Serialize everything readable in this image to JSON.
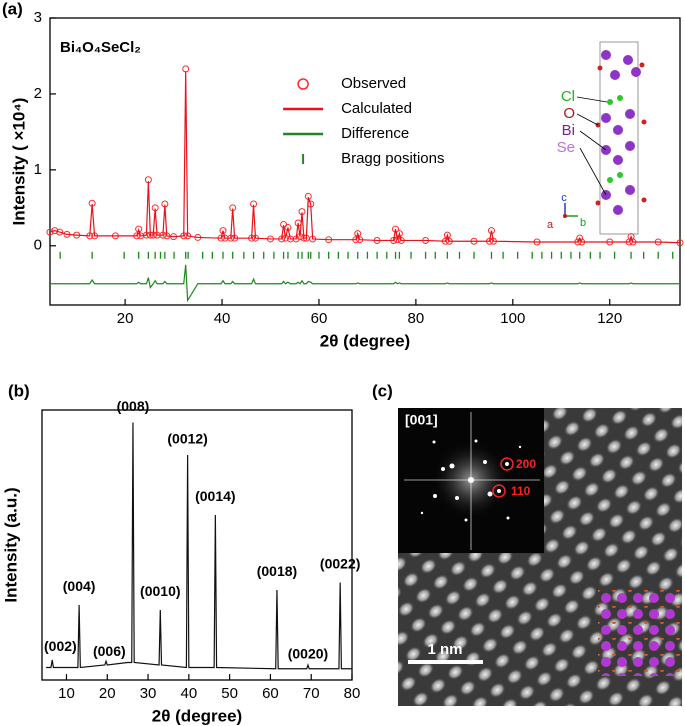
{
  "panel_labels": [
    "(a)",
    "(b)",
    "(c)"
  ],
  "chart_data": [
    {
      "type": "line",
      "title": "Bi₄O₄SeCl₂",
      "xlabel": "2θ (degree)",
      "ylabel": "Intensity ( ×10⁴)",
      "xlim": [
        4.5,
        134.5
      ],
      "ylim": [
        -0.78,
        3
      ],
      "xticks": [
        20,
        40,
        60,
        80,
        100,
        120
      ],
      "yticks": [
        0,
        1,
        2,
        3
      ],
      "legend": "upper center",
      "x": [
        4.5,
        5.5,
        6.5,
        8,
        10,
        12.7,
        13.2,
        13.7,
        18,
        22.4,
        22.8,
        23.2,
        24.4,
        24.8,
        25.2,
        25.8,
        26.2,
        26.6,
        27.8,
        28.2,
        28.6,
        30,
        32.1,
        32.5,
        32.9,
        35,
        39.8,
        40.2,
        40.6,
        41.8,
        42.2,
        42.6,
        46.1,
        46.5,
        46.9,
        50,
        52.3,
        52.7,
        53.1,
        53.6,
        54.1,
        55.3,
        55.7,
        56.1,
        56.5,
        56.9,
        57.4,
        57.8,
        58.3,
        58.7,
        62,
        67.6,
        68,
        68.4,
        72,
        75.4,
        75.8,
        76.2,
        76.6,
        77,
        82,
        86.1,
        86.5,
        86.9,
        92,
        95.2,
        95.6,
        96,
        105,
        113.4,
        113.8,
        114.2,
        120,
        124,
        124.4,
        124.8,
        130,
        134.5
      ],
      "series": [
        {
          "name": "Observed",
          "color": "#ff2a2a",
          "marker": "circle",
          "values": [
            0.18,
            0.2,
            0.18,
            0.15,
            0.14,
            0.13,
            0.56,
            0.13,
            0.13,
            0.13,
            0.22,
            0.13,
            0.14,
            0.87,
            0.14,
            0.14,
            0.5,
            0.14,
            0.14,
            0.55,
            0.13,
            0.12,
            0.13,
            2.33,
            0.13,
            0.11,
            0.1,
            0.2,
            0.1,
            0.1,
            0.5,
            0.1,
            0.1,
            0.55,
            0.1,
            0.09,
            0.09,
            0.28,
            0.1,
            0.24,
            0.09,
            0.09,
            0.3,
            0.12,
            0.45,
            0.1,
            0.1,
            0.65,
            0.55,
            0.09,
            0.08,
            0.08,
            0.16,
            0.08,
            0.07,
            0.07,
            0.22,
            0.08,
            0.16,
            0.07,
            0.07,
            0.06,
            0.14,
            0.06,
            0.06,
            0.06,
            0.2,
            0.06,
            0.05,
            0.05,
            0.1,
            0.05,
            0.05,
            0.05,
            0.12,
            0.05,
            0.05,
            0.04
          ]
        },
        {
          "name": "Calculated",
          "color": "#e8131a",
          "marker": "line",
          "values": [
            0.18,
            0.2,
            0.18,
            0.15,
            0.14,
            0.13,
            0.55,
            0.13,
            0.13,
            0.13,
            0.21,
            0.13,
            0.14,
            0.85,
            0.14,
            0.14,
            0.49,
            0.14,
            0.14,
            0.54,
            0.13,
            0.12,
            0.13,
            2.3,
            0.13,
            0.11,
            0.1,
            0.2,
            0.1,
            0.1,
            0.49,
            0.1,
            0.1,
            0.54,
            0.1,
            0.09,
            0.09,
            0.27,
            0.1,
            0.24,
            0.09,
            0.09,
            0.3,
            0.12,
            0.44,
            0.1,
            0.1,
            0.64,
            0.55,
            0.09,
            0.08,
            0.08,
            0.16,
            0.08,
            0.07,
            0.07,
            0.22,
            0.08,
            0.16,
            0.07,
            0.07,
            0.06,
            0.14,
            0.06,
            0.06,
            0.06,
            0.2,
            0.06,
            0.05,
            0.05,
            0.1,
            0.05,
            0.05,
            0.05,
            0.12,
            0.05,
            0.05,
            0.04
          ]
        },
        {
          "name": "Difference",
          "color": "#1a8a1a",
          "marker": "line",
          "values": [
            -0.5,
            -0.5,
            -0.5,
            -0.5,
            -0.5,
            -0.5,
            -0.45,
            -0.5,
            -0.5,
            -0.5,
            -0.48,
            -0.5,
            -0.5,
            -0.42,
            -0.55,
            -0.5,
            -0.46,
            -0.5,
            -0.5,
            -0.47,
            -0.5,
            -0.5,
            -0.5,
            -0.25,
            -0.72,
            -0.5,
            -0.5,
            -0.46,
            -0.5,
            -0.5,
            -0.47,
            -0.5,
            -0.5,
            -0.44,
            -0.5,
            -0.5,
            -0.5,
            -0.47,
            -0.5,
            -0.48,
            -0.5,
            -0.5,
            -0.48,
            -0.5,
            -0.46,
            -0.5,
            -0.5,
            -0.47,
            -0.48,
            -0.5,
            -0.5,
            -0.5,
            -0.49,
            -0.5,
            -0.5,
            -0.5,
            -0.48,
            -0.5,
            -0.49,
            -0.5,
            -0.5,
            -0.5,
            -0.49,
            -0.5,
            -0.5,
            -0.5,
            -0.49,
            -0.5,
            -0.5,
            -0.5,
            -0.49,
            -0.5,
            -0.5,
            -0.5,
            -0.49,
            -0.5,
            -0.5,
            -0.5
          ]
        },
        {
          "name": "Bragg positions",
          "color": "#1a8a1a",
          "marker": "tick",
          "x": [
            6.6,
            13.2,
            19.8,
            22.8,
            24.8,
            26.2,
            27.3,
            28.2,
            30.1,
            32.5,
            33,
            36,
            38,
            40.2,
            42.2,
            44.5,
            46.5,
            48.6,
            50.7,
            52.7,
            53.6,
            55.7,
            56.5,
            57.8,
            58.3,
            60,
            62,
            64,
            66,
            68,
            70,
            72,
            74,
            75.8,
            76.6,
            79,
            82,
            84,
            86.5,
            89,
            92,
            95.6,
            98,
            101,
            104,
            106,
            108,
            110,
            112,
            113.8,
            116,
            118,
            121,
            124.4,
            127,
            130,
            133
          ]
        }
      ],
      "structure_labels": [
        {
          "text": "Cl",
          "color": "#1db31d"
        },
        {
          "text": "O",
          "color": "#b01818"
        },
        {
          "text": "Bi",
          "color": "#7a1fa0"
        },
        {
          "text": "Se",
          "color": "#c070d8"
        }
      ],
      "axes_labels": [
        {
          "text": "c",
          "color": "#1a3ad0"
        },
        {
          "text": "a",
          "color": "#c01818"
        },
        {
          "text": "b",
          "color": "#18a018"
        }
      ]
    },
    {
      "type": "line",
      "xlabel": "2θ (degree)",
      "ylabel": "Intensity (a.u.)",
      "xlim": [
        4,
        80
      ],
      "ylim": [
        -0.03,
        1.05
      ],
      "xticks": [
        10,
        20,
        30,
        40,
        50,
        60,
        70,
        80
      ],
      "x": [
        5,
        6.2,
        6.5,
        6.8,
        12.8,
        13.1,
        13.4,
        19.4,
        19.7,
        20,
        25,
        26,
        26.3,
        26.6,
        32.7,
        33,
        33.3,
        39.4,
        39.7,
        40,
        46.2,
        46.5,
        46.8,
        61.3,
        61.6,
        61.9,
        68.9,
        69.2,
        69.5,
        76.8,
        77.1,
        77.4,
        80
      ],
      "series": [
        {
          "color": "#111111",
          "marker": "line",
          "values": [
            0.02,
            0.02,
            0.05,
            0.02,
            0.02,
            0.27,
            0.02,
            0.03,
            0.045,
            0.03,
            0.04,
            0.04,
            1.0,
            0.04,
            0.03,
            0.25,
            0.03,
            0.02,
            0.87,
            0.02,
            0.02,
            0.63,
            0.02,
            0.015,
            0.33,
            0.015,
            0.015,
            0.03,
            0.015,
            0.015,
            0.36,
            0.015,
            0.015
          ]
        }
      ],
      "annotations": [
        {
          "text": "(002)",
          "x": 8.5,
          "y": 0.1
        },
        {
          "text": "(004)",
          "x": 13.1,
          "y": 0.34
        },
        {
          "text": "(006)",
          "x": 20.5,
          "y": 0.08
        },
        {
          "text": "(008)",
          "x": 26.3,
          "y": 1.06
        },
        {
          "text": "(0010)",
          "x": 33,
          "y": 0.32
        },
        {
          "text": "(0012)",
          "x": 39.7,
          "y": 0.93
        },
        {
          "text": "(0014)",
          "x": 46.5,
          "y": 0.7
        },
        {
          "text": "(0018)",
          "x": 61.6,
          "y": 0.4
        },
        {
          "text": "(0020)",
          "x": 69.2,
          "y": 0.07
        },
        {
          "text": "(0022)",
          "x": 77.1,
          "y": 0.43
        }
      ]
    }
  ],
  "panel_c": {
    "zone_axis": "[001]",
    "spots": [
      "200",
      "110"
    ],
    "scale_bar": "1 nm"
  }
}
